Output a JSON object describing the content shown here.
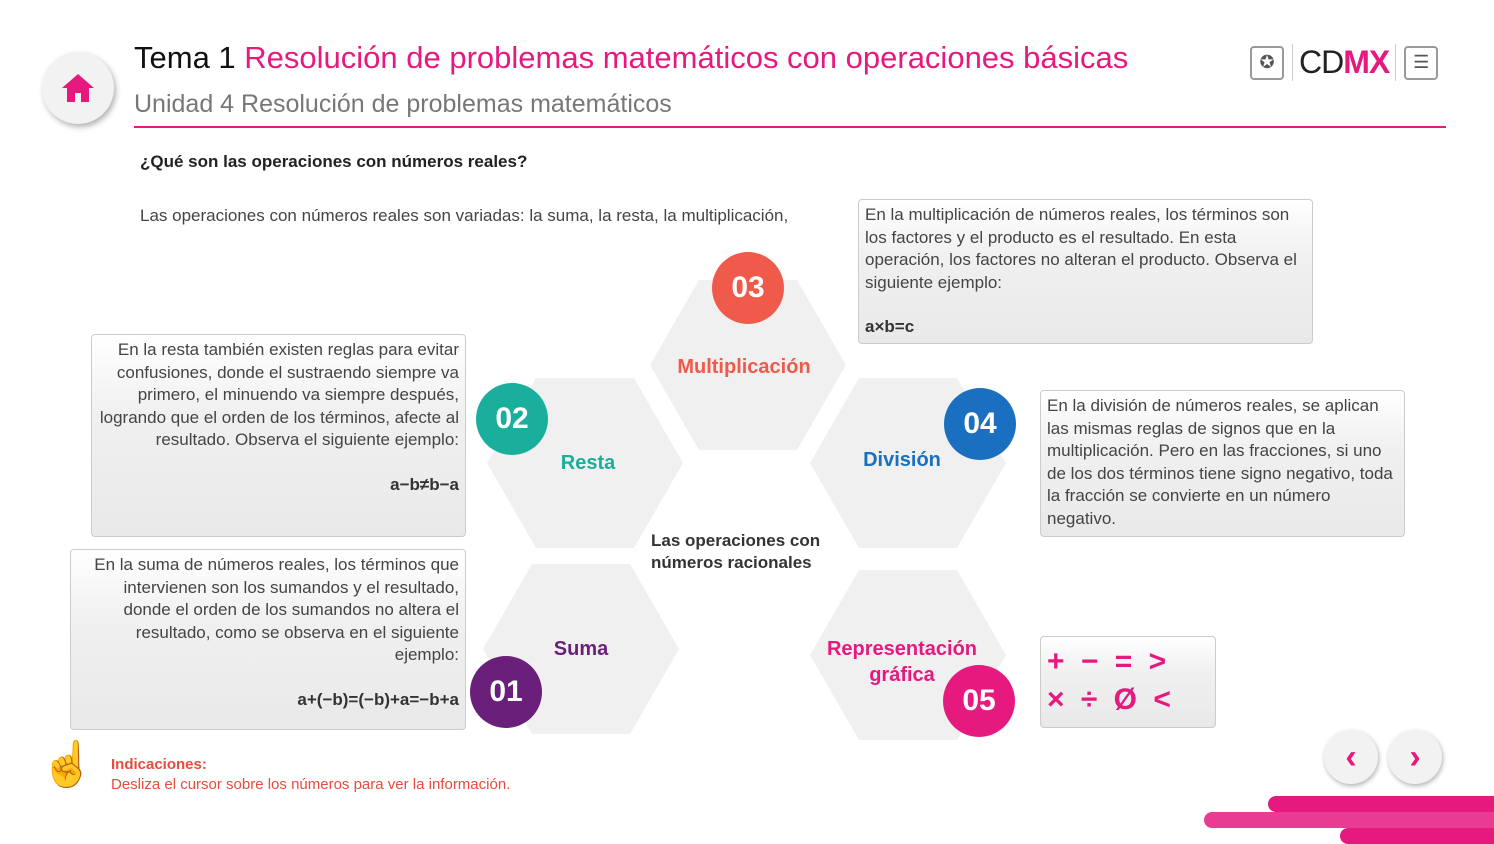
{
  "header": {
    "tema": "Tema 1",
    "title": "Resolución de problemas matemáticos con operaciones básicas",
    "subtitle": "Unidad 4 Resolución de problemas matemáticos",
    "logo_text_1": "CD",
    "logo_text_2": "MX"
  },
  "question": "¿Qué son las operaciones con números reales?",
  "intro": "Las operaciones con números reales son variadas: la suma, la resta, la multiplicación,",
  "center": {
    "line1": "Las operaciones con",
    "line2": "números racionales"
  },
  "items": [
    {
      "num": "01",
      "label": "Suma",
      "color": "#6a1f7a",
      "text": "En la suma de números reales, los términos que intervienen son los sumandos y el resultado, donde el orden de los sumandos no altera el resultado, como se observa en el siguiente ejemplo:",
      "formula": "a+(−b)=(−b)+a=−b+a"
    },
    {
      "num": "02",
      "label": "Resta",
      "color": "#1aaf9c",
      "text": "En la resta también existen reglas para evitar confusiones, donde el sustraendo siempre va primero, el minuendo va siempre después, logrando que el orden de los términos, afecte al resultado. Observa el siguiente ejemplo:",
      "formula": "a−b≠b−a"
    },
    {
      "num": "03",
      "label": "Multiplicación",
      "color": "#ef5a4a",
      "text": "En la multiplicación de números reales, los términos son los factores y el producto es el resultado. En esta operación, los factores no alteran el producto. Observa el siguiente ejemplo:",
      "formula": "a×b=c"
    },
    {
      "num": "04",
      "label": "División",
      "color": "#1a6fc0",
      "text": "En la división de números reales, se aplican las mismas reglas de signos que en la multiplicación. Pero en las fracciones, si uno de los dos términos tiene signo negativo, toda la fracción se convierte en un número negativo."
    },
    {
      "num": "05",
      "label1": "Representación",
      "label2": "gráfica",
      "color": "#e6197f",
      "symbols1": "+ − = >",
      "symbols2": "× ÷ Ø <"
    }
  ],
  "instructions": {
    "title": "Indicaciones:",
    "text": "Desliza el cursor sobre los números para ver la información."
  },
  "nav": {
    "prev": "‹",
    "next": "›"
  }
}
